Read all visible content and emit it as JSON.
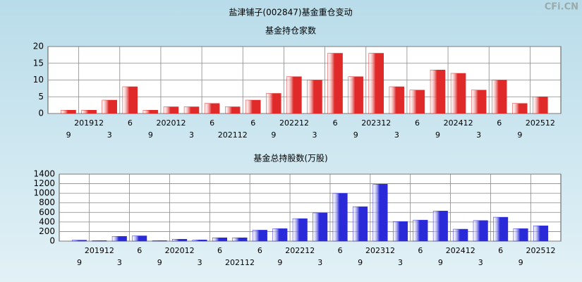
{
  "page_title": "盐津铺子(002847)基金重仓变动",
  "watermark": "CFi.CN",
  "chart_data": [
    {
      "type": "bar",
      "title": "基金持仓家数",
      "categories": [
        "9",
        "201912",
        "3",
        "6",
        "9",
        "202012",
        "3",
        "6",
        "202112",
        "6",
        "9",
        "202212",
        "3",
        "6",
        "9",
        "202312",
        "3",
        "6",
        "9",
        "202412",
        "3",
        "6",
        "9",
        "202512"
      ],
      "values": [
        1,
        1,
        4,
        8,
        1,
        2,
        2,
        3,
        2,
        4,
        6,
        11,
        10,
        18,
        11,
        18,
        8,
        7,
        13,
        12,
        7,
        10,
        3,
        5
      ],
      "color": "#e02a2a",
      "ylim": [
        0,
        20
      ],
      "yticks": [
        0,
        5,
        10,
        15,
        20
      ],
      "grid": true
    },
    {
      "type": "bar",
      "title": "基金总持股数(万股)",
      "categories": [
        "9",
        "201912",
        "3",
        "6",
        "9",
        "202012",
        "3",
        "6",
        "202112",
        "6",
        "9",
        "202212",
        "3",
        "6",
        "9",
        "202312",
        "3",
        "6",
        "9",
        "202412",
        "3",
        "6",
        "9",
        "202512"
      ],
      "values": [
        20,
        10,
        100,
        110,
        10,
        40,
        25,
        70,
        70,
        230,
        260,
        470,
        590,
        1000,
        720,
        1190,
        410,
        440,
        630,
        250,
        430,
        500,
        260,
        320
      ],
      "color": "#2a2ad8",
      "ylim": [
        0,
        1400
      ],
      "yticks": [
        0,
        200,
        400,
        600,
        800,
        1000,
        1200,
        1400
      ],
      "grid": true
    }
  ]
}
